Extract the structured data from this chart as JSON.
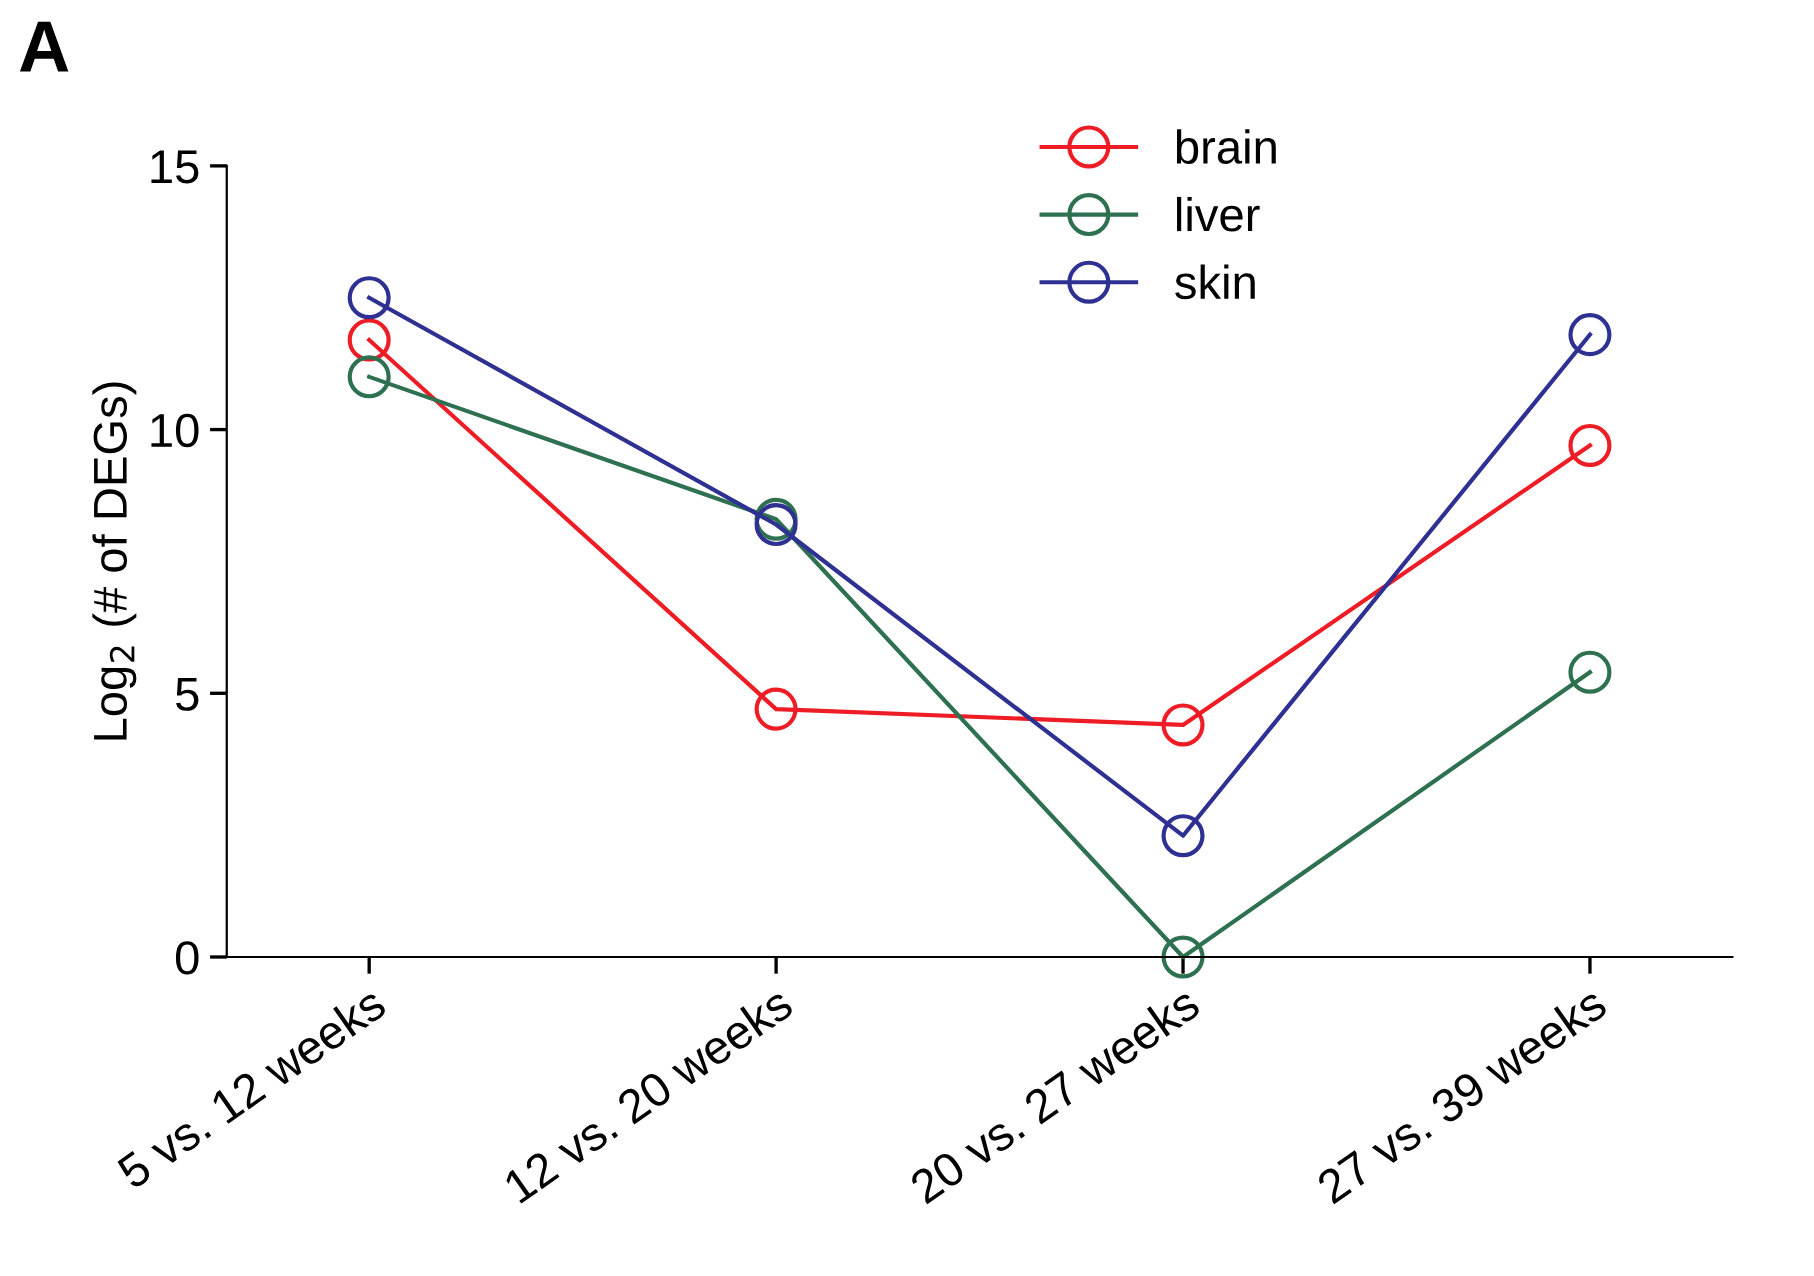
{
  "chart_data": {
    "type": "line",
    "ylabel": "Log$_{2}$ (# of DEGs)",
    "annotations": [
      "A"
    ],
    "categories": [
      "5 vs. 12 weeks",
      "12 vs. 20 weeks",
      "20 vs. 27 weeks",
      "27 vs. 39 weeks"
    ],
    "series": [
      {
        "name": "brain",
        "color": "#ee1c25",
        "values": [
          11.7,
          4.7,
          4.4,
          9.7
        ]
      },
      {
        "name": "liver",
        "color": "#2e7150",
        "values": [
          11.0,
          8.3,
          0,
          5.4
        ]
      },
      {
        "name": "skin",
        "color": "#2e3192",
        "values": [
          12.5,
          8.2,
          2.3,
          11.8
        ]
      }
    ],
    "ylim": [
      0,
      15
    ],
    "yticks": [
      0,
      5,
      10,
      15
    ],
    "grid": false,
    "legend": "top",
    "marker": "circle",
    "line_style": "solid"
  }
}
